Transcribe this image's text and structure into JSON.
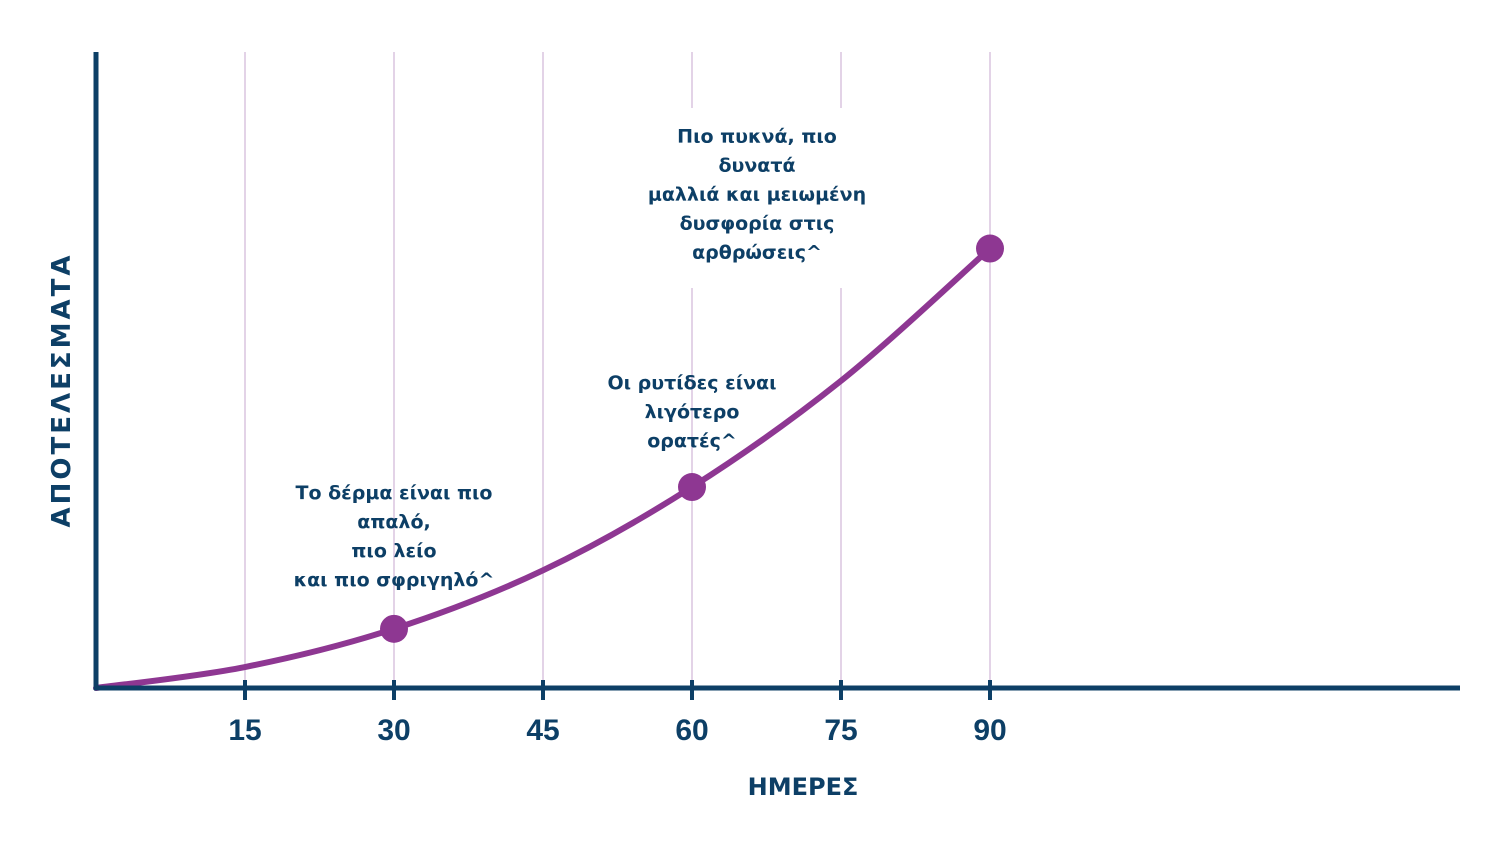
{
  "chart_data": {
    "type": "line",
    "xlabel": "ΗΜΕΡΕΣ",
    "ylabel": "ΑΠΟΤΕΛΕΣΜΑΤΑ",
    "x_ticks": [
      15,
      30,
      45,
      60,
      75,
      90
    ],
    "xlim": [
      0,
      95
    ],
    "ylim": [
      0,
      100
    ],
    "grid": "vertical",
    "series": [
      {
        "x": [
          0,
          15,
          30,
          45,
          60,
          75,
          90
        ],
        "y": [
          0,
          3.3,
          9.3,
          18.5,
          31.6,
          48.3,
          69.1
        ]
      }
    ],
    "markers": [
      {
        "x": 30,
        "y": 9.3,
        "annotation": [
          "Το δέρμα είναι πιο",
          "απαλό,",
          "πιο λείο",
          "και πιο σφριγηλό^"
        ]
      },
      {
        "x": 60,
        "y": 31.6,
        "annotation": [
          "Οι ρυτίδες είναι",
          "λιγότερο",
          "ορατές^"
        ]
      },
      {
        "x": 90,
        "y": 69.1,
        "annotation": [
          "Πιο πυκνά, πιο",
          "δυνατά",
          "μαλλιά και μειωμένη",
          "δυσφορία στις",
          "αρθρώσεις^"
        ]
      }
    ],
    "colors": {
      "line": "#8e3792",
      "axis": "#0d3f66",
      "grid": "#e3d3e7",
      "text": "#0d3f66"
    }
  }
}
